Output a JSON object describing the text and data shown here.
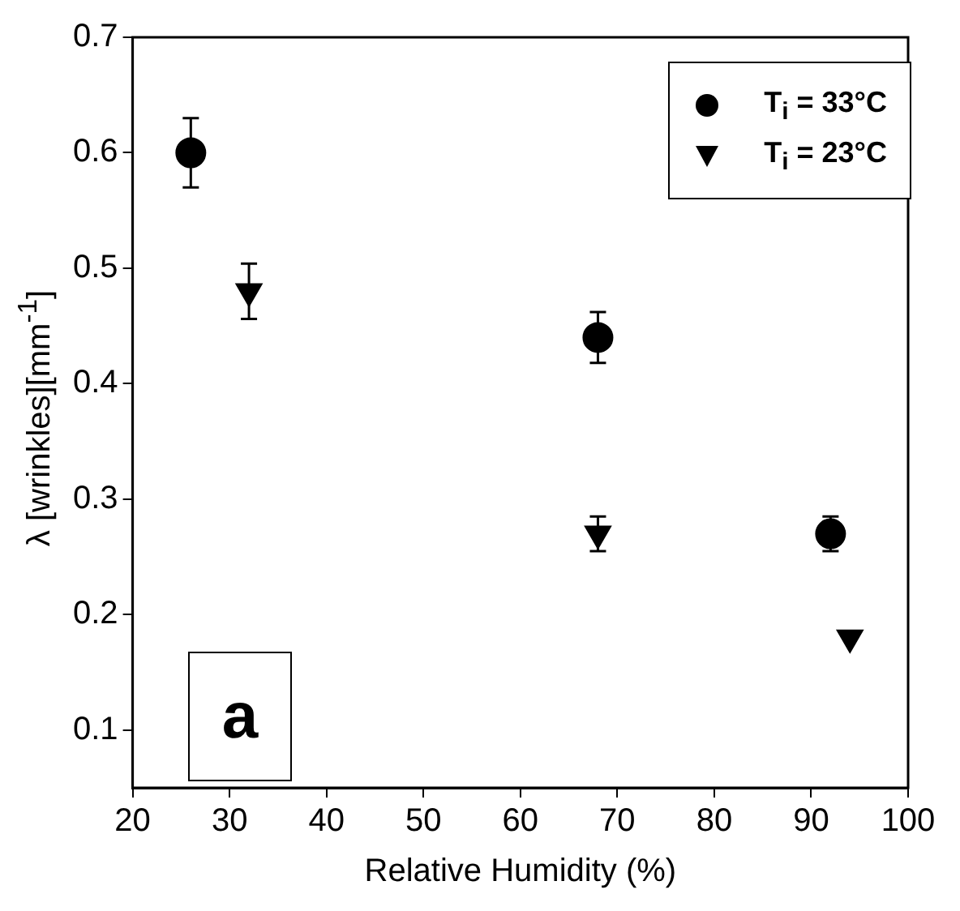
{
  "chart_data": {
    "type": "scatter",
    "xlabel": "Relative Humidity (%)",
    "ylabel": "λ [wrinkles][mm$^{-1}$]",
    "xlim": [
      20,
      100
    ],
    "xticks": [
      20,
      30,
      40,
      50,
      60,
      70,
      80,
      90,
      100
    ],
    "ylim": [
      0.05,
      0.7
    ],
    "yticks": [
      0.1,
      0.2,
      0.3,
      0.4,
      0.5,
      0.6,
      0.7
    ],
    "grid": false,
    "legend": "top right",
    "annotations": [
      "a"
    ],
    "series": [
      {
        "name": "T$_{i}$ = 33°C",
        "color": "#000000",
        "marker": "circle",
        "x": [
          26,
          68,
          92
        ],
        "values": [
          0.6,
          0.44,
          0.27
        ],
        "errors": [
          0.03,
          0.022,
          0.015
        ]
      },
      {
        "name": "T$_{i}$ = 23°C",
        "color": "#000000",
        "marker": "triangle",
        "x": [
          32,
          68,
          94
        ],
        "values": [
          0.48,
          0.27,
          0.18
        ],
        "errors": [
          0.024,
          0.015,
          null
        ]
      }
    ]
  }
}
